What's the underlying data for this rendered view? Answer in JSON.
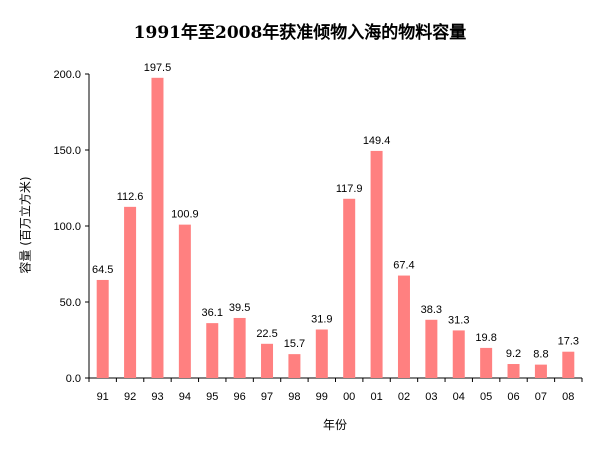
{
  "chart_data": {
    "type": "bar",
    "title": "1991年至2008年获准倾物入海的物料容量",
    "xlabel": "年份",
    "ylabel": "容量 (百万立方米)",
    "categories": [
      "91",
      "92",
      "93",
      "94",
      "95",
      "96",
      "97",
      "98",
      "99",
      "00",
      "01",
      "02",
      "03",
      "04",
      "05",
      "06",
      "07",
      "08"
    ],
    "values": [
      64.5,
      112.6,
      197.5,
      100.9,
      36.1,
      39.5,
      22.5,
      15.7,
      31.9,
      117.9,
      149.4,
      67.4,
      38.3,
      31.3,
      19.8,
      9.2,
      8.8,
      17.3
    ],
    "data_labels": [
      "64.5",
      "112.6",
      "197.5",
      "100.9",
      "36.1",
      "39.5",
      "22.5",
      "15.7",
      "31.9",
      "117.9",
      "149.4",
      "67.4",
      "38.3",
      "31.3",
      "19.8",
      "9.2",
      "8.8",
      "17.3"
    ],
    "yticks": [
      "0.0",
      "50.0",
      "100.0",
      "150.0",
      "200.0"
    ],
    "ylim": [
      0,
      200
    ],
    "grid": false,
    "legend": "none",
    "bar_color": "#FF8080"
  }
}
